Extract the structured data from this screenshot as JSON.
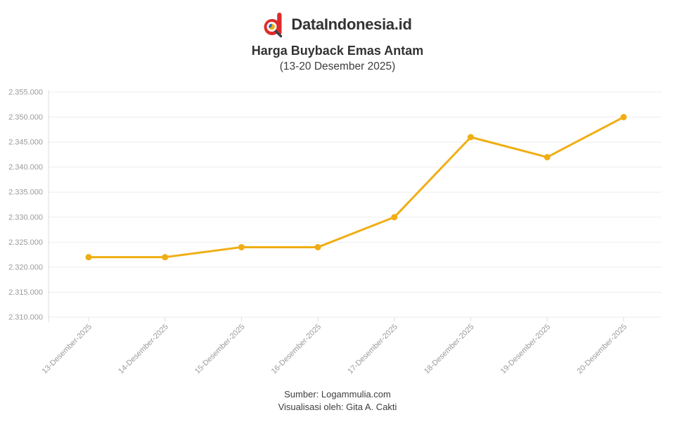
{
  "header": {
    "brand": "DataIndonesia.id",
    "title": "Harga Buyback Emas Antam",
    "subtitle": "(13-20 Desember 2025)"
  },
  "footer": {
    "source": "Sumber: Logammulia.com",
    "credit": "Visualisasi oleh: Gita A. Cakti"
  },
  "chart_data": {
    "type": "line",
    "title": "Harga Buyback Emas Antam",
    "subtitle": "(13-20 Desember 2025)",
    "categories": [
      "13-Desember-2025",
      "14-Desember-2025",
      "15-Desember-2025",
      "16-Desember-2025",
      "17-Desember-2025",
      "18-Desember-2025",
      "19-Desember-2025",
      "20-Desember-2025"
    ],
    "values": [
      2322000,
      2322000,
      2324000,
      2324000,
      2330000,
      2346000,
      2342000,
      2350000
    ],
    "xlabel": "",
    "ylabel": "",
    "ylim": [
      2310000,
      2355000
    ],
    "grid": true,
    "legend": "none",
    "y_ticks": [
      {
        "value": 2355000,
        "label": "2.355.000"
      },
      {
        "value": 2350000,
        "label": "2.350.000"
      },
      {
        "value": 2345000,
        "label": "2.345.000"
      },
      {
        "value": 2340000,
        "label": "2.340.000"
      },
      {
        "value": 2335000,
        "label": "2.335.000"
      },
      {
        "value": 2330000,
        "label": "2.330.000"
      },
      {
        "value": 2325000,
        "label": "2.325.000"
      },
      {
        "value": 2320000,
        "label": "2.320.000"
      },
      {
        "value": 2315000,
        "label": "2.315.000"
      },
      {
        "value": 2310000,
        "label": "2.310.000"
      }
    ],
    "colors": {
      "line": "#F0AE14",
      "point": "#F0AE14",
      "grid": "#EDEDED",
      "axis": "#DCDCDC",
      "tick_label": "#9B9B9B"
    },
    "logo_colors": {
      "red": "#DD2B2B",
      "handle": "#38404C",
      "pie_yellow": "#F0AE14",
      "pie_blue": "#2B6CB0"
    }
  }
}
